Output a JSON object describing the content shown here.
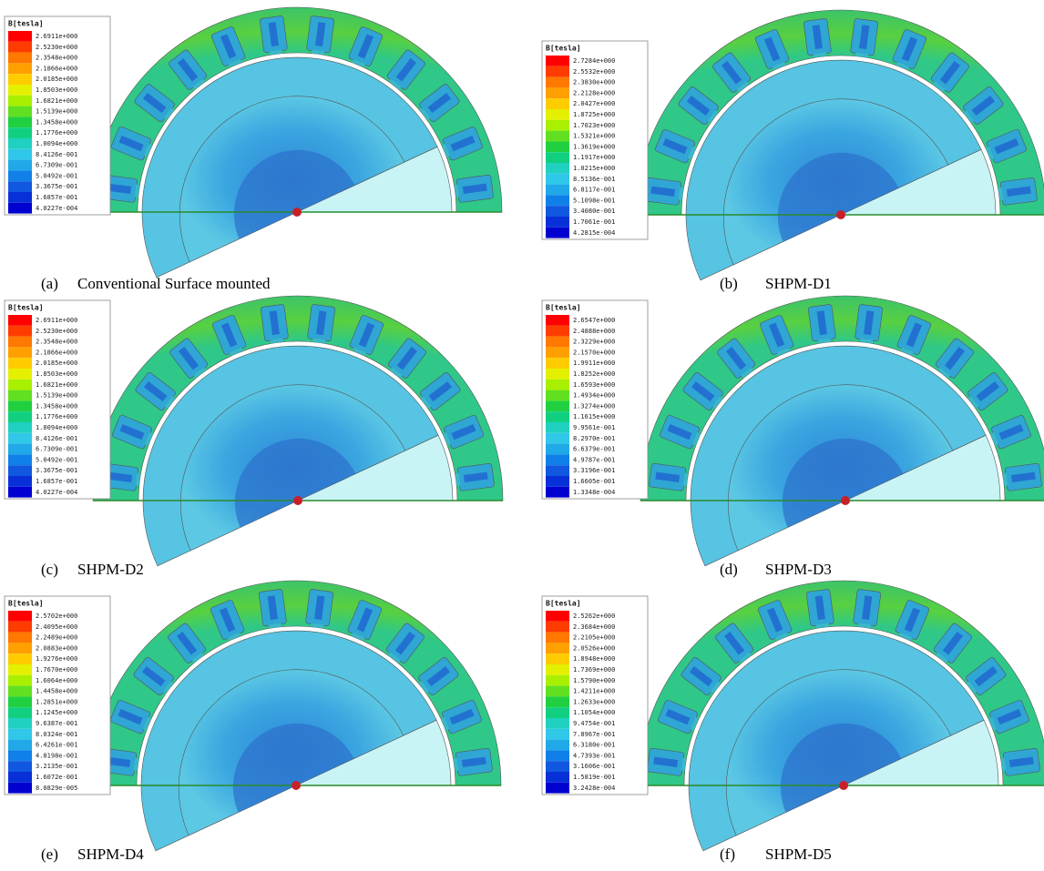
{
  "panels": [
    {
      "legend": {
        "title": "B[tesla]",
        "labels": [
          "2.6911e+000",
          "2.5230e+000",
          "2.3548e+000",
          "2.1866e+000",
          "2.0185e+000",
          "1.8503e+000",
          "1.6821e+000",
          "1.5139e+000",
          "1.3458e+000",
          "1.1776e+000",
          "1.0094e+000",
          "8.4126e-001",
          "6.7309e-001",
          "5.0492e-001",
          "3.3675e-001",
          "1.6857e-001",
          "4.0227e-004"
        ]
      },
      "caption": {
        "label": "(a)",
        "text": "Conventional Surface mounted"
      }
    },
    {
      "legend": {
        "title": "B[tesla]",
        "labels": [
          "2.7284e+000",
          "2.5532e+000",
          "2.3830e+000",
          "2.2128e+000",
          "2.0427e+000",
          "1.8725e+000",
          "1.7023e+000",
          "1.5321e+000",
          "1.3619e+000",
          "1.1917e+000",
          "1.0215e+000",
          "8.5136e-001",
          "6.8117e-001",
          "5.1098e-001",
          "3.4080e-001",
          "1.7061e-001",
          "4.2815e-004"
        ]
      },
      "caption": {
        "label": "(b)",
        "text": "SHPM-D1"
      }
    },
    {
      "legend": {
        "title": "B[tesla]",
        "labels": [
          "2.6911e+000",
          "2.5230e+000",
          "2.3548e+000",
          "2.1866e+000",
          "2.0185e+000",
          "1.8503e+000",
          "1.6821e+000",
          "1.5139e+000",
          "1.3458e+000",
          "1.1776e+000",
          "1.0094e+000",
          "8.4126e-001",
          "6.7309e-001",
          "5.0492e-001",
          "3.3675e-001",
          "1.6857e-001",
          "4.0227e-004"
        ]
      },
      "caption": {
        "label": "(c)",
        "text": "SHPM-D2"
      }
    },
    {
      "legend": {
        "title": "B[tesla]",
        "labels": [
          "2.6547e+000",
          "2.4888e+000",
          "2.3229e+000",
          "2.1570e+000",
          "1.9911e+000",
          "1.8252e+000",
          "1.6593e+000",
          "1.4934e+000",
          "1.3274e+000",
          "1.1615e+000",
          "9.9561e-001",
          "8.2970e-001",
          "6.6379e-001",
          "4.9787e-001",
          "3.3196e-001",
          "1.6605e-001",
          "1.3348e-004"
        ]
      },
      "caption": {
        "label": "(d)",
        "text": "SHPM-D3"
      }
    },
    {
      "legend": {
        "title": "B[tesla]",
        "labels": [
          "2.5702e+000",
          "2.4095e+000",
          "2.2489e+000",
          "2.0883e+000",
          "1.9276e+000",
          "1.7670e+000",
          "1.6064e+000",
          "1.4458e+000",
          "1.2851e+000",
          "1.1245e+000",
          "9.6387e-001",
          "8.0324e-001",
          "6.4261e-001",
          "4.8198e-001",
          "3.2135e-001",
          "1.6072e-001",
          "8.0829e-005"
        ]
      },
      "caption": {
        "label": "(e)",
        "text": "SHPM-D4"
      }
    },
    {
      "legend": {
        "title": "B[tesla]",
        "labels": [
          "2.5262e+000",
          "2.3684e+000",
          "2.2105e+000",
          "2.0526e+000",
          "1.8948e+000",
          "1.7369e+000",
          "1.5790e+000",
          "1.4211e+000",
          "1.2633e+000",
          "1.1054e+000",
          "9.4754e-001",
          "7.8967e-001",
          "6.3180e-001",
          "4.7393e-001",
          "3.1606e-001",
          "1.5819e-001",
          "3.2428e-004"
        ]
      },
      "caption": {
        "label": "(f)",
        "text": "SHPM-D5"
      }
    }
  ]
}
